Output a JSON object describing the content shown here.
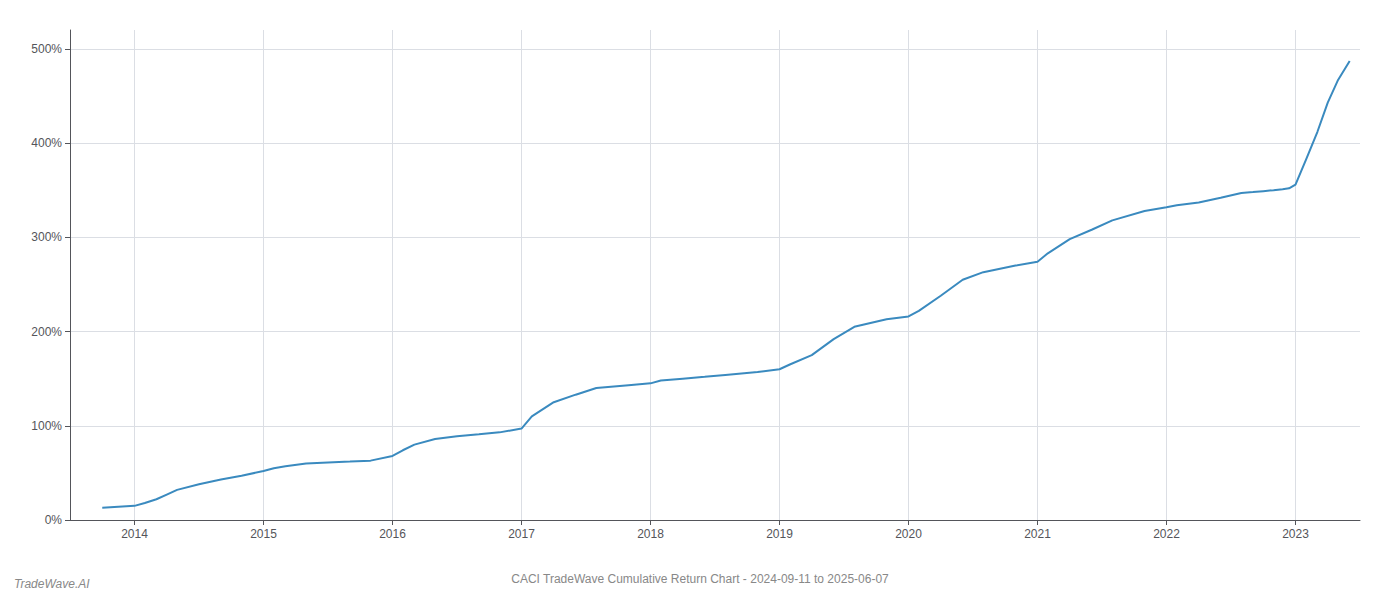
{
  "chart_data": {
    "type": "line",
    "title": "CACI TradeWave Cumulative Return Chart - 2024-09-11 to 2025-06-07",
    "annotations": [
      "TradeWave.AI"
    ],
    "color": "#3a8abf",
    "grid": true,
    "x": [
      2013.75,
      2014.0,
      2014.08,
      2014.17,
      2014.25,
      2014.33,
      2014.5,
      2014.67,
      2014.83,
      2015.0,
      2015.08,
      2015.17,
      2015.33,
      2015.5,
      2015.67,
      2015.83,
      2016.0,
      2016.08,
      2016.17,
      2016.33,
      2016.5,
      2016.67,
      2016.83,
      2017.0,
      2017.08,
      2017.25,
      2017.42,
      2017.58,
      2017.83,
      2018.0,
      2018.08,
      2018.25,
      2018.42,
      2018.58,
      2018.83,
      2019.0,
      2019.08,
      2019.25,
      2019.42,
      2019.58,
      2019.83,
      2020.0,
      2020.08,
      2020.25,
      2020.42,
      2020.58,
      2020.83,
      2021.0,
      2021.08,
      2021.25,
      2021.42,
      2021.58,
      2021.83,
      2022.0,
      2022.08,
      2022.25,
      2022.42,
      2022.58,
      2022.67,
      2022.75,
      2022.83,
      2022.9,
      2022.95,
      2023.0,
      2023.08,
      2023.17,
      2023.25,
      2023.33,
      2023.42
    ],
    "values": [
      13,
      15,
      18,
      22,
      27,
      32,
      38,
      43,
      47,
      52,
      55,
      57,
      60,
      61,
      62,
      63,
      68,
      74,
      80,
      86,
      89,
      91,
      93,
      97,
      110,
      125,
      133,
      140,
      143,
      145,
      148,
      150,
      152,
      154,
      157,
      160,
      165,
      175,
      192,
      205,
      213,
      216,
      222,
      238,
      255,
      263,
      270,
      274,
      283,
      298,
      308,
      318,
      328,
      332,
      334,
      337,
      342,
      347,
      348,
      349,
      350,
      351,
      352,
      356,
      382,
      412,
      443,
      467,
      487
    ],
    "xlim": [
      2013.5,
      2023.5
    ],
    "xticks": [
      2014,
      2015,
      2016,
      2017,
      2018,
      2019,
      2020,
      2021,
      2022,
      2023
    ],
    "ylim": [
      0,
      520
    ],
    "yticks": [
      {
        "value": 0,
        "label": "0%"
      },
      {
        "value": 100,
        "label": "100%"
      },
      {
        "value": 200,
        "label": "200%"
      },
      {
        "value": 300,
        "label": "300%"
      },
      {
        "value": 400,
        "label": "400%"
      },
      {
        "value": 500,
        "label": "500%"
      }
    ]
  }
}
